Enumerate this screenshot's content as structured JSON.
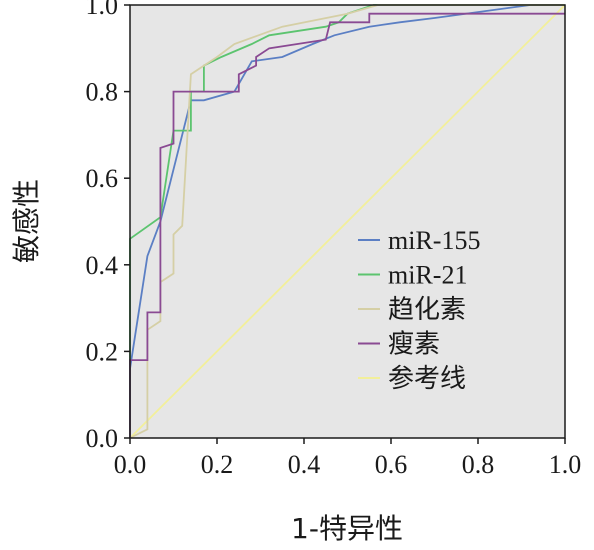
{
  "chart_data": {
    "type": "line",
    "title": "",
    "xlabel": "1-特异性",
    "ylabel": "敏感性",
    "xlim": [
      0,
      1
    ],
    "ylim": [
      0,
      1
    ],
    "x_ticks": [
      "0.0",
      "0.2",
      "0.4",
      "0.6",
      "0.8",
      "1.0"
    ],
    "y_ticks": [
      "0.0",
      "0.2",
      "0.4",
      "0.6",
      "0.8",
      "1.0"
    ],
    "grid": false,
    "legend_position": "center-right",
    "plot_background": "#e6e6e6",
    "series": [
      {
        "name": "miR-155",
        "color": "#5b7fc4",
        "points": [
          [
            0,
            0
          ],
          [
            0,
            0.16
          ],
          [
            0.04,
            0.42
          ],
          [
            0.07,
            0.5
          ],
          [
            0.14,
            0.78
          ],
          [
            0.17,
            0.78
          ],
          [
            0.24,
            0.8
          ],
          [
            0.28,
            0.87
          ],
          [
            0.35,
            0.88
          ],
          [
            0.42,
            0.91
          ],
          [
            0.47,
            0.93
          ],
          [
            0.55,
            0.95
          ],
          [
            0.62,
            0.96
          ],
          [
            0.7,
            0.97
          ],
          [
            0.92,
            1.0
          ],
          [
            1.0,
            1.0
          ]
        ]
      },
      {
        "name": "miR-21",
        "color": "#5cc46f",
        "points": [
          [
            0,
            0
          ],
          [
            0,
            0.46
          ],
          [
            0.07,
            0.51
          ],
          [
            0.1,
            0.71
          ],
          [
            0.14,
            0.71
          ],
          [
            0.14,
            0.8
          ],
          [
            0.17,
            0.8
          ],
          [
            0.17,
            0.86
          ],
          [
            0.21,
            0.88
          ],
          [
            0.28,
            0.91
          ],
          [
            0.32,
            0.93
          ],
          [
            0.45,
            0.95
          ],
          [
            0.48,
            0.96
          ],
          [
            0.5,
            0.98
          ],
          [
            0.56,
            1.0
          ],
          [
            1.0,
            1.0
          ]
        ]
      },
      {
        "name": "趋化素",
        "color": "#d5cfa5",
        "points": [
          [
            0,
            0
          ],
          [
            0.04,
            0.02
          ],
          [
            0.04,
            0.25
          ],
          [
            0.07,
            0.27
          ],
          [
            0.07,
            0.36
          ],
          [
            0.1,
            0.38
          ],
          [
            0.1,
            0.47
          ],
          [
            0.12,
            0.49
          ],
          [
            0.14,
            0.84
          ],
          [
            0.17,
            0.86
          ],
          [
            0.2,
            0.88
          ],
          [
            0.24,
            0.91
          ],
          [
            0.35,
            0.95
          ],
          [
            0.5,
            0.98
          ],
          [
            0.57,
            1.0
          ],
          [
            1.0,
            1.0
          ]
        ]
      },
      {
        "name": "瘦素",
        "color": "#8a4a93",
        "points": [
          [
            0,
            0
          ],
          [
            0,
            0.18
          ],
          [
            0.04,
            0.18
          ],
          [
            0.04,
            0.29
          ],
          [
            0.07,
            0.29
          ],
          [
            0.07,
            0.67
          ],
          [
            0.1,
            0.68
          ],
          [
            0.1,
            0.8
          ],
          [
            0.25,
            0.8
          ],
          [
            0.25,
            0.84
          ],
          [
            0.29,
            0.86
          ],
          [
            0.29,
            0.88
          ],
          [
            0.32,
            0.9
          ],
          [
            0.45,
            0.92
          ],
          [
            0.46,
            0.96
          ],
          [
            0.55,
            0.96
          ],
          [
            0.55,
            0.98
          ],
          [
            1.0,
            0.98
          ]
        ]
      },
      {
        "name": "参考线",
        "color": "#f2ef9a",
        "points": [
          [
            0,
            0
          ],
          [
            1,
            1
          ]
        ]
      }
    ]
  }
}
